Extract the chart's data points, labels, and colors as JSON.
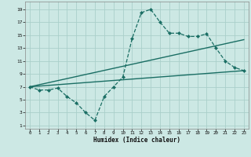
{
  "xlabel": "Humidex (Indice chaleur)",
  "bg_color": "#cce8e4",
  "grid_color": "#aacfca",
  "line_color": "#1a6e64",
  "xlim": [
    -0.5,
    23.5
  ],
  "ylim": [
    0.5,
    20.2
  ],
  "xticks": [
    0,
    1,
    2,
    3,
    4,
    5,
    6,
    7,
    8,
    9,
    10,
    11,
    12,
    13,
    14,
    15,
    16,
    17,
    18,
    19,
    20,
    21,
    22,
    23
  ],
  "yticks": [
    1,
    3,
    5,
    7,
    9,
    11,
    13,
    15,
    17,
    19
  ],
  "curve_x": [
    0,
    1,
    2,
    3,
    4,
    5,
    6,
    7,
    8,
    9,
    10,
    11,
    12,
    13,
    14,
    15,
    16,
    17,
    18,
    19,
    20,
    21,
    22,
    23
  ],
  "curve_y": [
    7.0,
    6.5,
    6.5,
    6.8,
    5.5,
    4.5,
    3.0,
    1.8,
    5.5,
    7.0,
    8.5,
    14.5,
    18.5,
    19.0,
    17.0,
    15.3,
    15.3,
    14.8,
    14.8,
    15.2,
    13.0,
    11.0,
    10.0,
    9.5
  ],
  "line2_x": [
    0,
    23
  ],
  "line2_y": [
    7.0,
    14.3
  ],
  "line3_x": [
    0,
    23
  ],
  "line3_y": [
    7.0,
    9.5
  ],
  "line4_x": [
    0,
    23
  ],
  "line4_y": [
    7.0,
    9.5
  ]
}
